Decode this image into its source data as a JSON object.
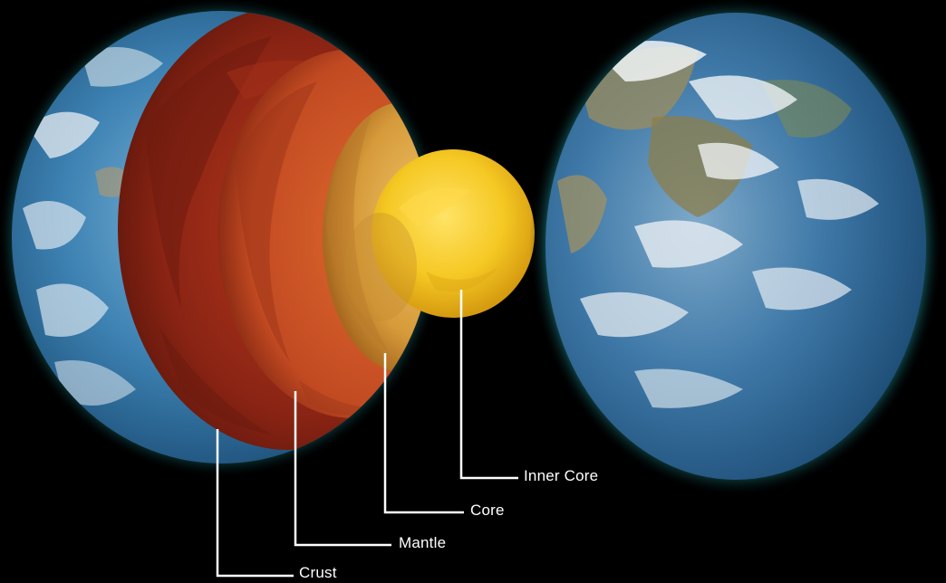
{
  "labels": {
    "inner_core": "Inner Core",
    "core": "Core",
    "mantle": "Mantle",
    "crust": "Crust"
  },
  "colors": {
    "background": "#000000",
    "ocean": "#2f6f9e",
    "glow": "#37c6c0",
    "crust_layer": "#8a2414",
    "mantle_layer": "#c24a22",
    "outer_core": "#d69a3a",
    "inner_core": "#f5c823",
    "leader_line": "#ffffff"
  },
  "icons": {
    "left_globe": "earth-cutaway-globe-icon",
    "right_globe": "earth-globe-icon"
  }
}
